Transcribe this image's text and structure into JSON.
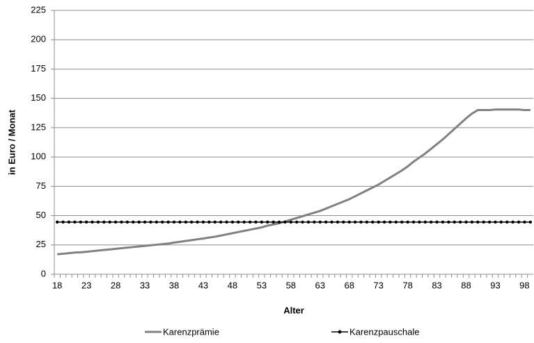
{
  "chart_data": {
    "type": "line",
    "x": [
      18,
      19,
      20,
      21,
      22,
      23,
      24,
      25,
      26,
      27,
      28,
      29,
      30,
      31,
      32,
      33,
      34,
      35,
      36,
      37,
      38,
      39,
      40,
      41,
      42,
      43,
      44,
      45,
      46,
      47,
      48,
      49,
      50,
      51,
      52,
      53,
      54,
      55,
      56,
      57,
      58,
      59,
      60,
      61,
      62,
      63,
      64,
      65,
      66,
      67,
      68,
      69,
      70,
      71,
      72,
      73,
      74,
      75,
      76,
      77,
      78,
      79,
      80,
      81,
      82,
      83,
      84,
      85,
      86,
      87,
      88,
      89,
      90,
      91,
      92,
      93,
      94,
      95,
      96,
      97,
      98,
      99
    ],
    "series": [
      {
        "name": "Karenzprämie",
        "color": "#808080",
        "marker": false,
        "values": [
          17.0,
          17.5,
          18.0,
          18.5,
          18.7,
          19.2,
          19.7,
          20.2,
          20.7,
          21.2,
          21.7,
          22.2,
          22.7,
          23.2,
          23.7,
          24.2,
          24.7,
          25.2,
          25.7,
          26.2,
          27.0,
          27.7,
          28.4,
          29.1,
          29.8,
          30.5,
          31.3,
          32.0,
          33.0,
          34.0,
          35.0,
          36.0,
          37.0,
          38.0,
          39.0,
          40.0,
          41.5,
          42.5,
          43.5,
          45.0,
          46.5,
          48.0,
          49.5,
          51.0,
          52.5,
          54.0,
          56.0,
          58.0,
          60.0,
          62.0,
          64.0,
          66.5,
          69.0,
          71.5,
          74.0,
          76.5,
          79.5,
          82.5,
          85.5,
          88.5,
          92.0,
          96.0,
          99.5,
          103,
          107,
          111,
          115,
          119.5,
          124,
          128.5,
          133,
          137,
          140,
          140,
          140,
          140.5,
          140.5,
          140.5,
          140.5,
          140.5,
          140,
          140
        ]
      },
      {
        "name": "Karenzpauschale",
        "color": "#000000",
        "marker": true,
        "values": [
          44.5,
          44.5,
          44.5,
          44.5,
          44.5,
          44.5,
          44.5,
          44.5,
          44.5,
          44.5,
          44.5,
          44.5,
          44.5,
          44.5,
          44.5,
          44.5,
          44.5,
          44.5,
          44.5,
          44.5,
          44.5,
          44.5,
          44.5,
          44.5,
          44.5,
          44.5,
          44.5,
          44.5,
          44.5,
          44.5,
          44.5,
          44.5,
          44.5,
          44.5,
          44.5,
          44.5,
          44.5,
          44.5,
          44.5,
          44.5,
          44.5,
          44.5,
          44.5,
          44.5,
          44.5,
          44.5,
          44.5,
          44.5,
          44.5,
          44.5,
          44.5,
          44.5,
          44.5,
          44.5,
          44.5,
          44.5,
          44.5,
          44.5,
          44.5,
          44.5,
          44.5,
          44.5,
          44.5,
          44.5,
          44.5,
          44.5,
          44.5,
          44.5,
          44.5,
          44.5,
          44.5,
          44.5,
          44.5,
          44.5,
          44.5,
          44.5,
          44.5,
          44.5,
          44.5,
          44.5,
          44.5,
          44.5
        ]
      }
    ],
    "xlabel": "Alter",
    "ylabel": "in Euro / Monat",
    "xlim": [
      17.5,
      99.5
    ],
    "xticks": [
      18,
      23,
      28,
      33,
      38,
      43,
      48,
      53,
      58,
      63,
      68,
      73,
      78,
      83,
      88,
      93,
      98
    ],
    "ylim": [
      0,
      225
    ],
    "yticks": [
      0,
      25,
      50,
      75,
      100,
      125,
      150,
      175,
      200,
      225
    ],
    "grid": true,
    "legend": "bottom"
  }
}
